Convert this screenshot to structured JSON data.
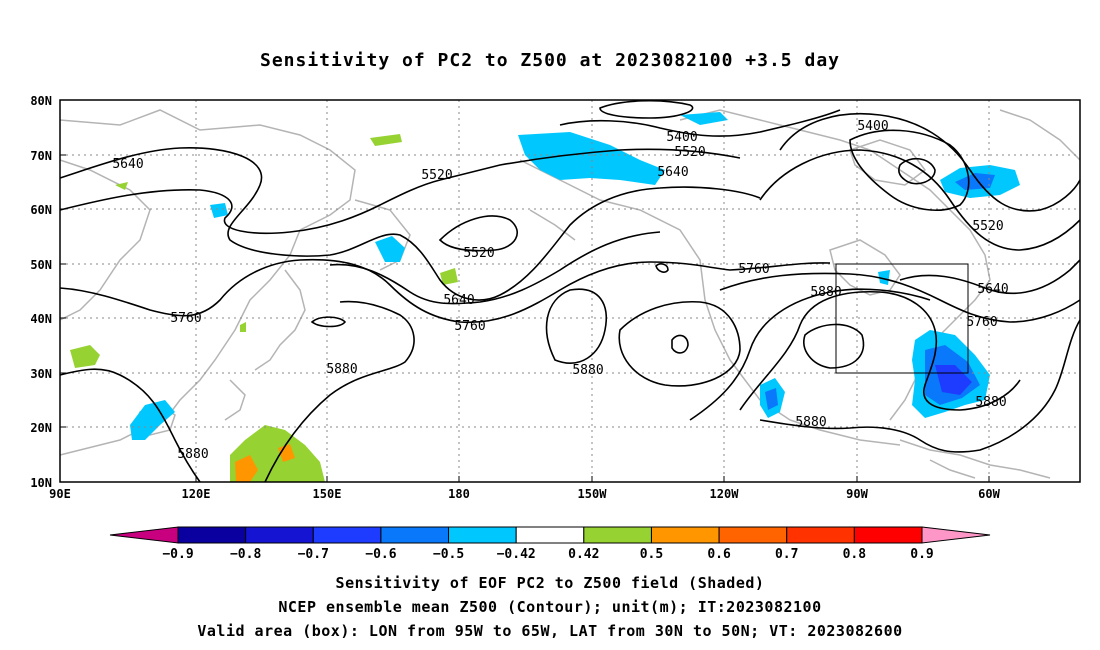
{
  "title": "Sensitivity of PC2 to Z500 at 2023082100 +3.5 day",
  "lat_labels": [
    "80N",
    "70N",
    "60N",
    "50N",
    "40N",
    "30N",
    "20N",
    "10N"
  ],
  "lon_labels": [
    "90E",
    "120E",
    "150E",
    "180",
    "150W",
    "120W",
    "90W",
    "60W"
  ],
  "contour_labels": [
    "5640",
    "5520",
    "5400",
    "5520",
    "5640",
    "5400",
    "5520",
    "5520",
    "5640",
    "5760",
    "5760",
    "5880",
    "5880",
    "5880",
    "5880",
    "5760",
    "5640",
    "5760",
    "5880",
    "5880"
  ],
  "colorbar": {
    "labels": [
      "-0.9",
      "-0.8",
      "-0.7",
      "-0.6",
      "-0.5",
      "-0.42",
      "0.42",
      "0.5",
      "0.6",
      "0.7",
      "0.8",
      "0.9"
    ],
    "colors": [
      "#c80080",
      "#0a00a0",
      "#1414d2",
      "#1e3cff",
      "#0a78fa",
      "#00c8ff",
      "#ffffff",
      "#96d232",
      "#ff9600",
      "#ff6400",
      "#ff3200",
      "#ff0000",
      "#ff96c8"
    ]
  },
  "caption": {
    "line1": "Sensitivity of EOF PC2 to Z500 field (Shaded)",
    "line2": "NCEP ensemble mean Z500 (Contour); unit(m); IT:2023082100",
    "line3": "Valid area (box): LON from 95W to 65W, LAT from 30N to 50N; VT: 2023082600"
  }
}
